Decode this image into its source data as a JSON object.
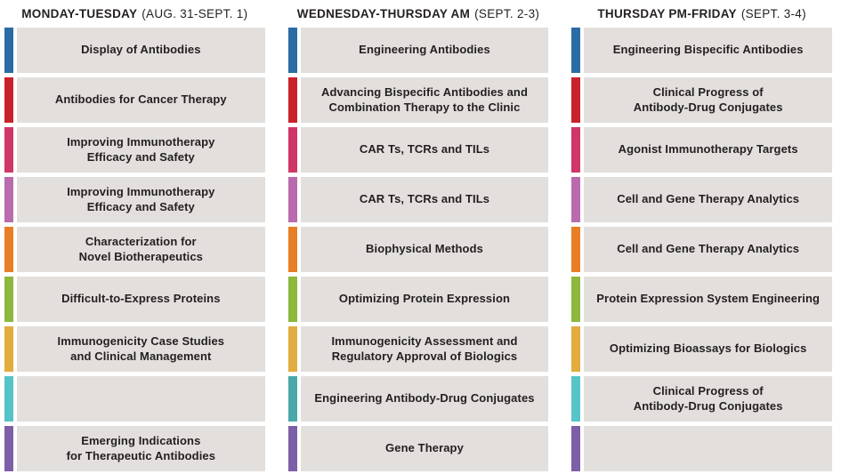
{
  "page": {
    "background": "#FFFFFF",
    "box_background": "#E2DFDD",
    "text_color": "#231F20"
  },
  "columns": [
    {
      "title": "MONDAY-TUESDAY",
      "dates": "(AUG. 31-SEPT. 1)",
      "sessions": [
        {
          "color": "#2B6CA4",
          "color_name": "blue",
          "label": "Display of Antibodies"
        },
        {
          "color": "#C9222B",
          "color_name": "red",
          "label": "Antibodies for Cancer Therapy"
        },
        {
          "color": "#CF3767",
          "color_name": "magenta",
          "label": "Improving Immunotherapy\nEfficacy and Safety"
        },
        {
          "color": "#B96BAD",
          "color_name": "orchid",
          "label": "Improving Immunotherapy\nEfficacy and Safety"
        },
        {
          "color": "#E87E25",
          "color_name": "orange",
          "label": "Characterization for\nNovel Biotherapeutics"
        },
        {
          "color": "#8DB73D",
          "color_name": "green",
          "label": "Difficult-to-Express Proteins"
        },
        {
          "color": "#E2AC3F",
          "color_name": "gold",
          "label": "Immunogenicity Case Studies\nand Clinical Management"
        },
        {
          "color": "#55C3C7",
          "color_name": "teal",
          "label": ""
        },
        {
          "color": "#7C5FA7",
          "color_name": "purple",
          "label": "Emerging Indications\nfor Therapeutic Antibodies"
        }
      ]
    },
    {
      "title": "WEDNESDAY-THURSDAY AM",
      "dates": "(SEPT. 2-3)",
      "sessions": [
        {
          "color": "#2B6CA4",
          "color_name": "blue",
          "label": "Engineering Antibodies"
        },
        {
          "color": "#C9222B",
          "color_name": "red",
          "label": "Advancing Bispecific Antibodies and\nCombination Therapy to the Clinic"
        },
        {
          "color": "#CF3767",
          "color_name": "magenta",
          "label": "CAR Ts, TCRs and TILs"
        },
        {
          "color": "#B96BAD",
          "color_name": "orchid",
          "label": "CAR Ts, TCRs and TILs"
        },
        {
          "color": "#E87E25",
          "color_name": "orange",
          "label": "Biophysical Methods"
        },
        {
          "color": "#8DB73D",
          "color_name": "green",
          "label": "Optimizing Protein Expression"
        },
        {
          "color": "#E2AC3F",
          "color_name": "gold",
          "label": "Immunogenicity Assessment and\nRegulatory Approval of Biologics"
        },
        {
          "color": "#4AA9A8",
          "color_name": "teal-dark",
          "label": "Engineering Antibody-Drug Conjugates"
        },
        {
          "color": "#7C5FA7",
          "color_name": "purple",
          "label": "Gene Therapy"
        }
      ]
    },
    {
      "title": "THURSDAY PM-FRIDAY",
      "dates": "(SEPT. 3-4)",
      "sessions": [
        {
          "color": "#2B6CA4",
          "color_name": "blue",
          "label": "Engineering Bispecific Antibodies"
        },
        {
          "color": "#C9222B",
          "color_name": "red",
          "label": "Clinical Progress of\nAntibody-Drug Conjugates"
        },
        {
          "color": "#CF3767",
          "color_name": "magenta",
          "label": "Agonist Immunotherapy Targets"
        },
        {
          "color": "#B96BAD",
          "color_name": "orchid",
          "label": "Cell and Gene Therapy Analytics"
        },
        {
          "color": "#E87E25",
          "color_name": "orange",
          "label": "Cell and Gene Therapy Analytics"
        },
        {
          "color": "#8DB73D",
          "color_name": "green",
          "label": "Protein Expression System Engineering"
        },
        {
          "color": "#E2AC3F",
          "color_name": "gold",
          "label": "Optimizing Bioassays for Biologics"
        },
        {
          "color": "#57C4C8",
          "color_name": "teal",
          "label": "Clinical Progress of\nAntibody-Drug Conjugates"
        },
        {
          "color": "#7C5FA7",
          "color_name": "purple",
          "label": ""
        }
      ]
    }
  ]
}
